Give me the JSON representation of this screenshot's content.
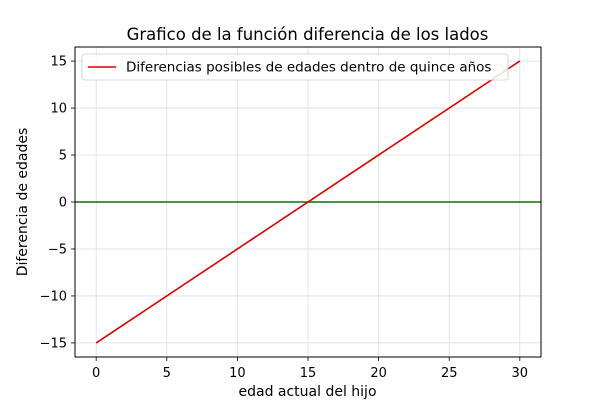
{
  "chart_data": {
    "type": "line",
    "title": "Grafico de la función diferencia de los lados",
    "xlabel": "edad actual del hijo",
    "ylabel": "Diferencia de edades",
    "xlim": [
      -1.5,
      31.5
    ],
    "ylim": [
      -16.5,
      16.5
    ],
    "xticks": [
      0,
      5,
      10,
      15,
      20,
      25,
      30
    ],
    "yticks": [
      -15,
      -10,
      -5,
      0,
      5,
      10,
      15
    ],
    "grid": true,
    "legend_position": "top",
    "series": [
      {
        "name": "Diferencias posibles de edades dentro de quince años",
        "color": "#e00000",
        "x": [
          0,
          30
        ],
        "y": [
          -15,
          15
        ]
      }
    ],
    "reference_lines": [
      {
        "orientation": "horizontal",
        "y": 0,
        "color": "#007700"
      }
    ]
  }
}
